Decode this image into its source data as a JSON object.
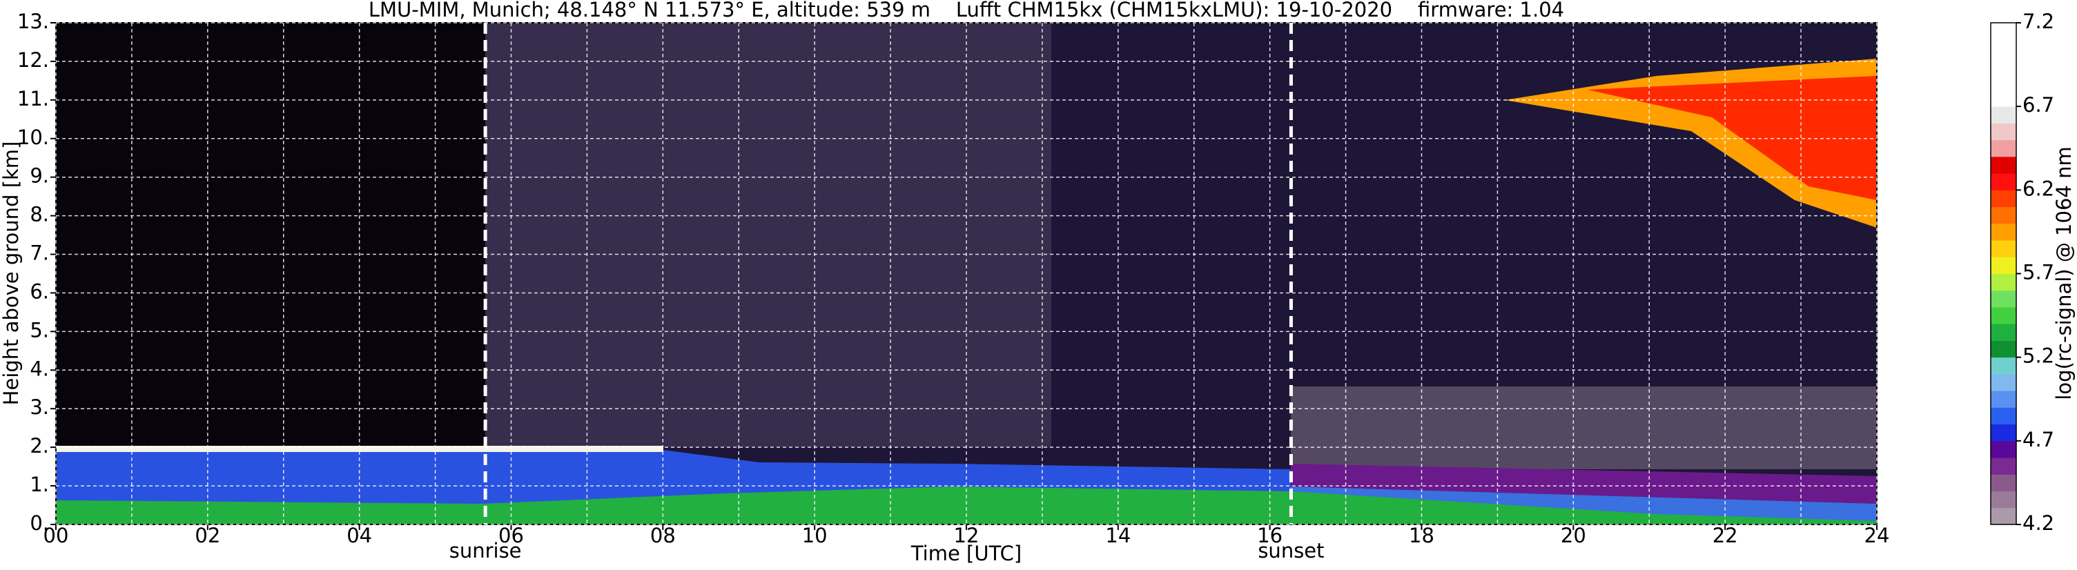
{
  "chart_data": {
    "type": "heatmap",
    "title": "LMU-MIM, Munich; 48.148° N 11.573° E, altitude: 539 m    Lufft CHM15kx (CHM15kxLMU): 19-10-2020    firmware: 1.04",
    "xlabel": "Time [UTC]",
    "ylabel": "Height above ground [km]",
    "xlim": [
      0,
      24
    ],
    "xticks": [
      {
        "value": 0,
        "label": "00"
      },
      {
        "value": 2,
        "label": "02"
      },
      {
        "value": 4,
        "label": "04"
      },
      {
        "value": 6,
        "label": "06"
      },
      {
        "value": 8,
        "label": "08"
      },
      10,
      12,
      14,
      16,
      18,
      20,
      22,
      24
    ],
    "xminorticks": [
      1,
      3,
      5,
      7,
      9,
      11,
      13,
      15,
      17,
      19,
      21,
      23
    ],
    "ylim": [
      0,
      13
    ],
    "yticks": [
      {
        "value": 0,
        "label": "0."
      },
      {
        "value": 1,
        "label": "1."
      },
      {
        "value": 2,
        "label": "2."
      },
      {
        "value": 3,
        "label": "3."
      },
      {
        "value": 4,
        "label": "4."
      },
      {
        "value": 5,
        "label": "5."
      },
      {
        "value": 6,
        "label": "6."
      },
      {
        "value": 7,
        "label": "7."
      },
      {
        "value": 8,
        "label": "8."
      },
      {
        "value": 9,
        "label": "9."
      },
      {
        "value": 10,
        "label": "10."
      },
      {
        "value": 11,
        "label": "11."
      },
      {
        "value": 12,
        "label": "12."
      },
      {
        "value": 13,
        "label": "13."
      }
    ],
    "grid": true,
    "annotations": [
      {
        "label": "sunrise",
        "x": 5.66
      },
      {
        "label": "sunset",
        "x": 16.28
      }
    ],
    "colorbar": {
      "label": "log(rc-signal) @ 1064 nm",
      "lim": [
        4.2,
        7.2
      ],
      "ticks": [
        4.2,
        4.7,
        5.2,
        5.7,
        6.2,
        6.7,
        7.2
      ],
      "colors": [
        "#aa9aaa",
        "#9a7c9a",
        "#8a5a8c",
        "#7a2a90",
        "#5a0898",
        "#1a2ae0",
        "#2a60f0",
        "#5a90f0",
        "#80b8f0",
        "#70d0d0",
        "#109030",
        "#20b040",
        "#40d040",
        "#70e060",
        "#b0f040",
        "#f0f020",
        "#ffd010",
        "#ffa000",
        "#ff7000",
        "#ff4000",
        "#ff1010",
        "#e00000",
        "#f0a0a0",
        "#f0c8c8",
        "#e8e8e8",
        "#ffffff",
        "#ffffff",
        "#ffffff",
        "#ffffff",
        "#ffffff"
      ]
    }
  }
}
